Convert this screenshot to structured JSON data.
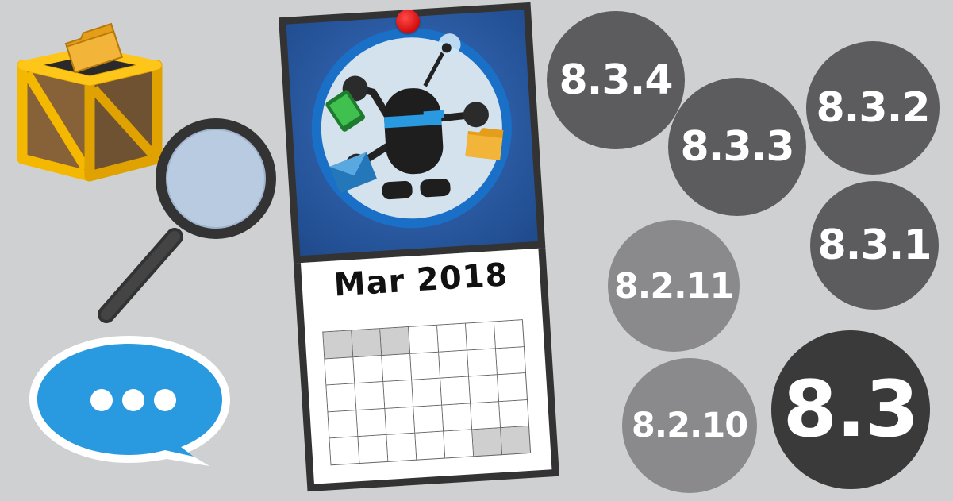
{
  "calendar": {
    "month_label": "Mar 2018",
    "grid": {
      "cols": 7,
      "rows": 5,
      "shaded": [
        0,
        1,
        2,
        33,
        34
      ]
    }
  },
  "versions": {
    "v834": "8.3.4",
    "v833": "8.3.3",
    "v832": "8.3.2",
    "v831": "8.3.1",
    "v8211": "8.2.11",
    "v8210": "8.2.10",
    "v83": "8.3"
  },
  "icons": {
    "crate": "crate-icon",
    "folder": "folder-icon",
    "magnifier": "magnifying-glass-icon",
    "chat": "chat-bubble-icon",
    "robot": "robot-icon",
    "phone": "phone-icon",
    "envelope": "envelope-icon",
    "pin": "pushpin-icon"
  },
  "colors": {
    "background": "#cfd0d1",
    "circle_dark": "#3a3a3b",
    "circle_mid": "#5c5c5e",
    "circle_light": "#8a8a8c",
    "chat_blue": "#2a9ae0",
    "calendar_blue": "#2b5ba3",
    "crate_yellow": "#f5b800",
    "pin_red": "#d20b0b"
  }
}
